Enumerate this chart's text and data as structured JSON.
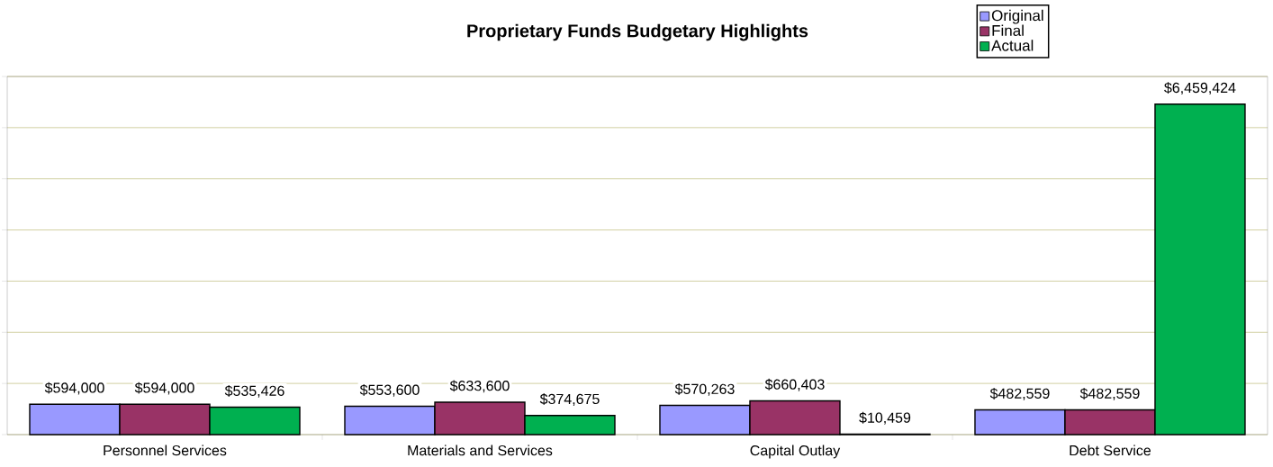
{
  "chart_data": {
    "type": "bar",
    "title": "Proprietary Funds Budgetary Highlights",
    "categories": [
      "Personnel Services",
      "Materials and Services",
      "Capital Outlay",
      "Debt Service"
    ],
    "series": [
      {
        "name": "Original",
        "color": "#9999ff",
        "values": [
          594000,
          553600,
          570263,
          482559
        ],
        "value_labels": [
          "$594,000",
          "$553,600",
          "$570,263",
          "$482,559"
        ]
      },
      {
        "name": "Final",
        "color": "#993366",
        "values": [
          594000,
          633600,
          660403,
          482559
        ],
        "value_labels": [
          "$594,000",
          "$633,600",
          "$660,403",
          "$482,559"
        ]
      },
      {
        "name": "Actual",
        "color": "#00b050",
        "values": [
          535426,
          374675,
          10459,
          6459424
        ],
        "value_labels": [
          "$535,426",
          "$374,675",
          "$10,459",
          "$6,459,424"
        ]
      }
    ],
    "ylim": [
      0,
      7000000
    ],
    "yticks": [
      {
        "value": 0,
        "label": null
      },
      {
        "value": 1000000,
        "label": null
      },
      {
        "value": 2000000,
        "label": null
      },
      {
        "value": 3000000,
        "label": null
      },
      {
        "value": 4000000,
        "label": null
      },
      {
        "value": 5000000,
        "label": null
      },
      {
        "value": 6000000,
        "label": null
      },
      {
        "value": 7000000,
        "label": null
      }
    ],
    "tick_labels": "x",
    "grid": "y",
    "legend": "top right"
  }
}
